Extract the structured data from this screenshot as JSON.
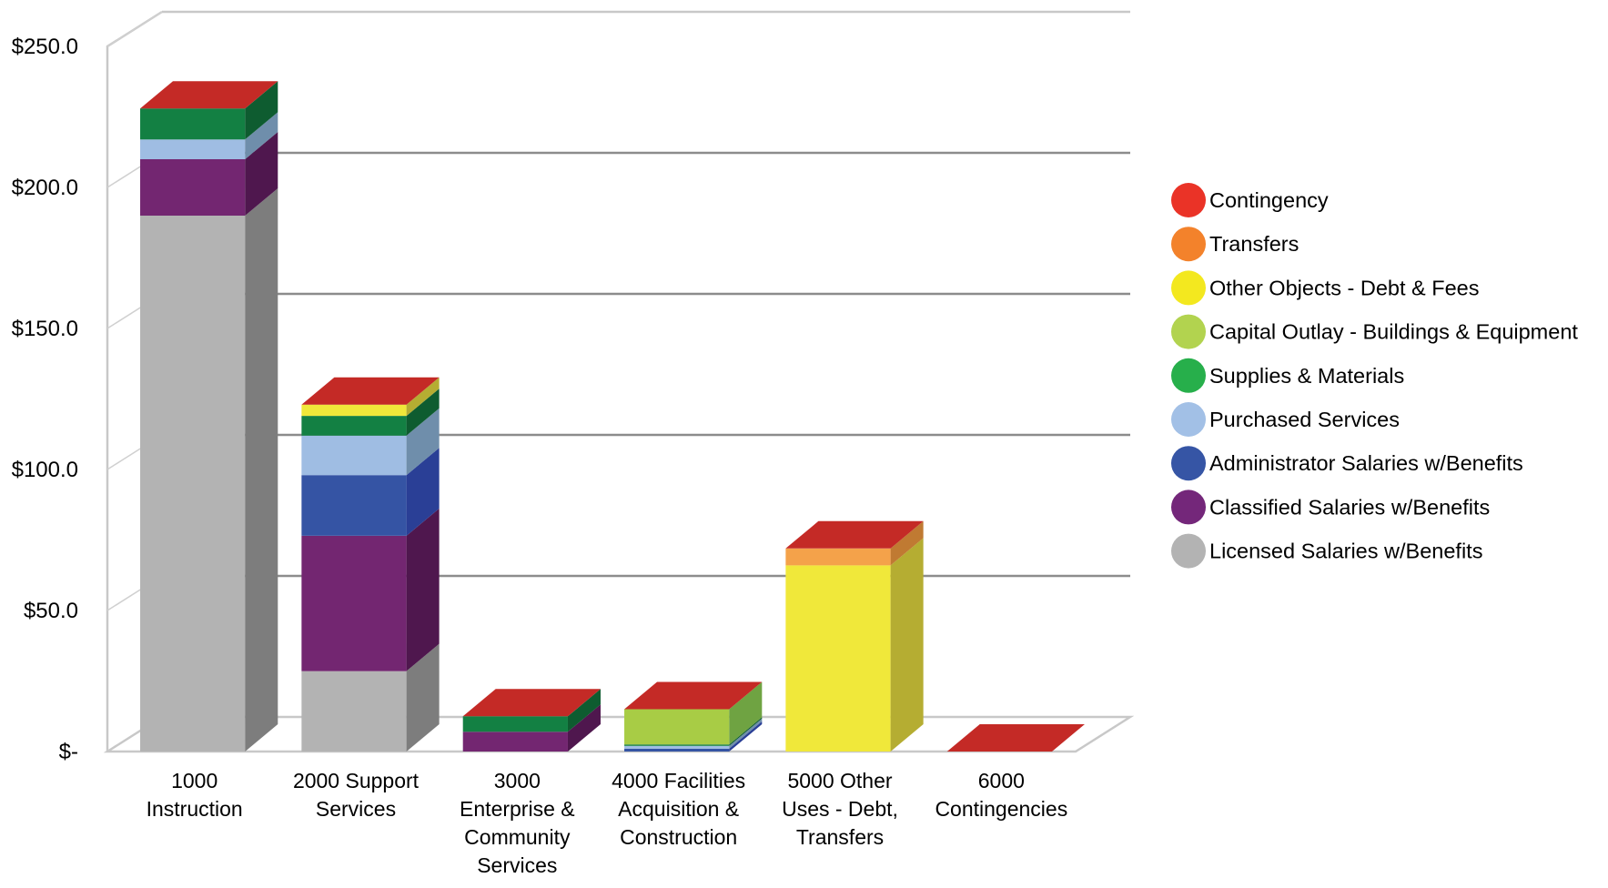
{
  "chart_data": {
    "type": "bar",
    "stacked": true,
    "three_d": true,
    "title": "",
    "xlabel": "",
    "ylabel": "",
    "ylim": [
      0,
      250
    ],
    "y_ticks": [
      "$-",
      "$50.0",
      "$100.0",
      "$150.0",
      "$200.0",
      "$250.0"
    ],
    "y_tick_values": [
      0,
      50,
      100,
      150,
      200,
      250
    ],
    "grid": true,
    "legend_position": "right",
    "categories": [
      [
        "1000",
        "Instruction"
      ],
      [
        "2000 Support",
        "Services"
      ],
      [
        "3000",
        "Enterprise &",
        "Community",
        "Services"
      ],
      [
        "4000 Facilities",
        "Acquisition &",
        "Construction"
      ],
      [
        "5000 Other",
        "Uses - Debt,",
        "Transfers"
      ],
      [
        "6000",
        "Contingencies"
      ]
    ],
    "series": [
      {
        "name": "Licensed Salaries w/Benefits",
        "color": "#b3b3b3",
        "side": "#7d7d7d",
        "values": [
          190,
          28.5,
          0,
          0,
          0,
          0
        ]
      },
      {
        "name": "Classified Salaries w/Benefits",
        "color": "#732671",
        "side": "#4f174e",
        "values": [
          20,
          48,
          7,
          0,
          0,
          0
        ]
      },
      {
        "name": "Administrator Salaries w/Benefits",
        "color": "#3554a4",
        "side": "#2a3f96",
        "values": [
          0,
          21.5,
          0,
          1,
          0,
          0
        ]
      },
      {
        "name": "Purchased Services",
        "color": "#9fbde3",
        "side": "#6f8eab",
        "values": [
          7,
          14,
          0,
          1,
          0,
          0
        ]
      },
      {
        "name": "Supplies & Materials",
        "color": "#138043",
        "side": "#0e5c30",
        "values": [
          11,
          7,
          5.5,
          0.5,
          0,
          0
        ]
      },
      {
        "name": "Capital Outlay - Buildings & Equipment",
        "color": "#a8cc45",
        "side": "#6fa342",
        "values": [
          0,
          0,
          0,
          12.5,
          0,
          0
        ]
      },
      {
        "name": "Other Objects - Debt & Fees",
        "color": "#f0e83a",
        "side": "#b5ad32",
        "values": [
          0,
          4,
          0,
          0,
          66,
          0
        ]
      },
      {
        "name": "Transfers",
        "color": "#f4a24a",
        "side": "#c07a32",
        "values": [
          0,
          0,
          0,
          0,
          6,
          0
        ]
      },
      {
        "name": "Contingency",
        "color": "#c42a26",
        "side": "#9a201d",
        "values": [
          0,
          0,
          0,
          0,
          0,
          0
        ]
      }
    ],
    "legend": [
      {
        "name": "Contingency",
        "color": "#ea3327"
      },
      {
        "name": "Transfers",
        "color": "#f3822b"
      },
      {
        "name": "Other Objects - Debt & Fees",
        "color": "#f3e81f"
      },
      {
        "name": "Capital Outlay - Buildings & Equipment",
        "color": "#b2d34f"
      },
      {
        "name": "Supplies & Materials",
        "color": "#27af4b"
      },
      {
        "name": "Purchased Services",
        "color": "#a2c0e6"
      },
      {
        "name": "Administrator Salaries w/Benefits",
        "color": "#3655a5"
      },
      {
        "name": "Classified Salaries w/Benefits",
        "color": "#74277a"
      },
      {
        "name": "Licensed Salaries w/Benefits",
        "color": "#b3b3b3"
      }
    ]
  }
}
